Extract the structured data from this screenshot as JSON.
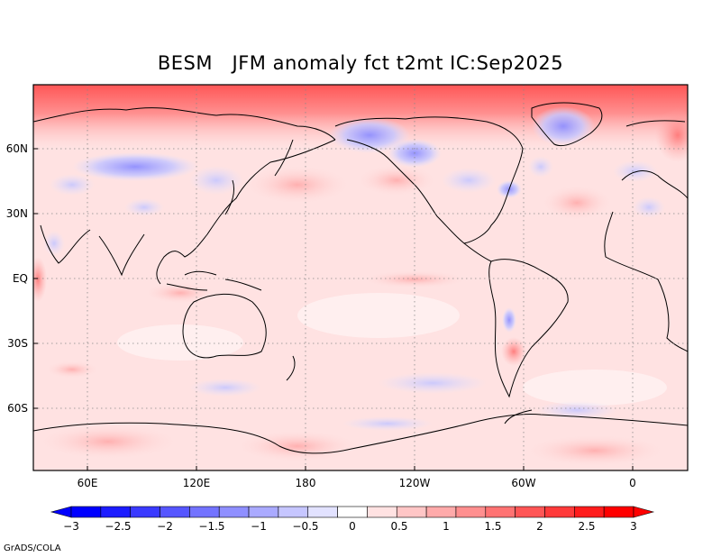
{
  "title": "BESM   JFM anomaly fct t2mt IC:Sep2025",
  "credit": "GrADS/COLA",
  "axes": {
    "lat_ticks": [
      "60N",
      "30N",
      "EQ",
      "30S",
      "60S"
    ],
    "lon_ticks": [
      "60E",
      "120E",
      "180",
      "120W",
      "60W",
      "0"
    ]
  },
  "colorbar": {
    "labels": [
      "−3",
      "−2.5",
      "−2",
      "−1.5",
      "−1",
      "−0.5",
      "0",
      "0.5",
      "1",
      "1.5",
      "2",
      "2.5",
      "3"
    ],
    "colors": [
      "#0000ff",
      "#1c1cff",
      "#3a3aff",
      "#5656ff",
      "#7373ff",
      "#8f8fff",
      "#aaaaff",
      "#c6c6ff",
      "#e2e2ff",
      "#ffffff",
      "#ffe2e2",
      "#ffc6c6",
      "#ffaaaa",
      "#ff8f8f",
      "#ff7373",
      "#ff5656",
      "#ff3a3a",
      "#ff1c1c",
      "#ff0000"
    ],
    "arrow_low": "#0000ff",
    "arrow_high": "#ff0000"
  },
  "chart_data": {
    "type": "heatmap",
    "title": "BESM   JFM anomaly fct t2mt IC:Sep2025",
    "variable": "t2mt",
    "season": "JFM",
    "initial_condition": "Sep2025",
    "model": "BESM",
    "lon_range": [
      30,
      390
    ],
    "lat_range": [
      -90,
      90
    ],
    "color_range": [
      -3,
      3
    ],
    "features": [
      {
        "region": "Arctic band",
        "anomaly": 2.0
      },
      {
        "region": "Greenland",
        "anomaly": -1.0
      },
      {
        "region": "Alaska / NW Canada",
        "anomaly": -0.75
      },
      {
        "region": "Central Siberia",
        "anomaly": -0.75
      },
      {
        "region": "Tropics",
        "anomaly": 0.25
      },
      {
        "region": "North Pacific",
        "anomaly": 0.75
      },
      {
        "region": "Southern Ocean",
        "anomaly": 0.5
      }
    ]
  }
}
